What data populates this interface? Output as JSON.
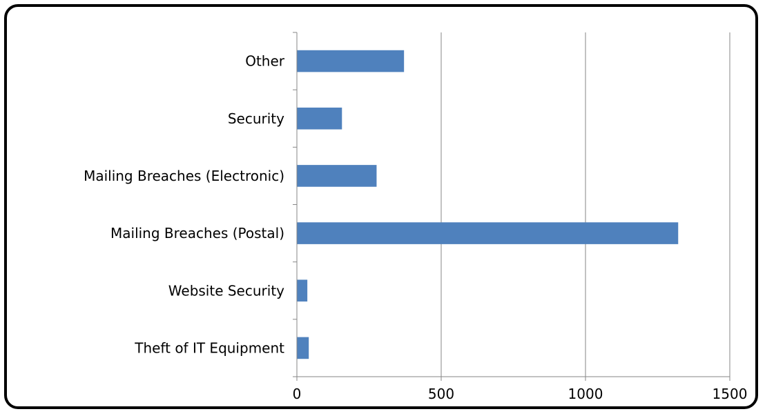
{
  "chart_data": {
    "type": "bar",
    "orientation": "horizontal",
    "title": "",
    "xlabel": "",
    "ylabel": "",
    "categories": [
      "Theft of IT Equipment",
      "Website Security",
      "Mailing Breaches (Postal)",
      "Mailing Breaches (Electronic)",
      "Security",
      "Other"
    ],
    "values": [
      40,
      35,
      1320,
      275,
      155,
      370
    ],
    "xlim": [
      0,
      1500
    ],
    "xticks": [
      "0",
      "500",
      "1000",
      "1500"
    ],
    "grid": "vertical",
    "legend": "none",
    "bar_color": "#4F81BD",
    "grid_color": "#868686"
  }
}
